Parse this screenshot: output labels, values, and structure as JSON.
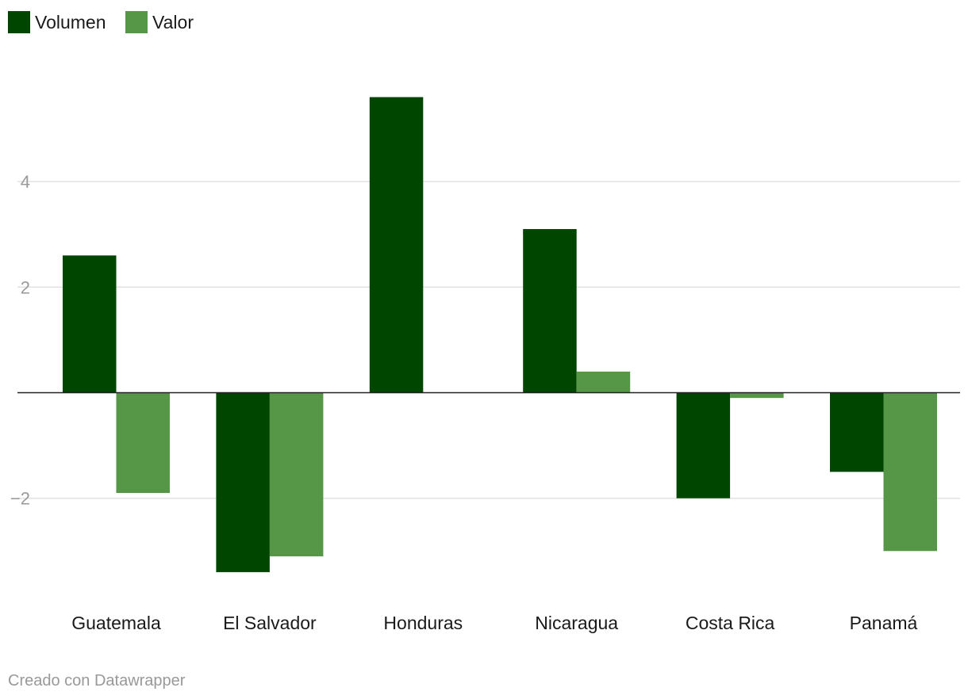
{
  "chart_data": {
    "type": "bar",
    "title": "",
    "xlabel": "",
    "ylabel": "",
    "categories": [
      "Guatemala",
      "El Salvador",
      "Honduras",
      "Nicaragua",
      "Costa Rica",
      "Panamá"
    ],
    "series": [
      {
        "name": "Volumen",
        "color": "#004600",
        "values": [
          2.6,
          -3.4,
          5.6,
          3.1,
          -2.0,
          -1.5
        ]
      },
      {
        "name": "Valor",
        "color": "#559647",
        "values": [
          -1.9,
          -3.1,
          0.0,
          0.4,
          -0.1,
          -3.0
        ]
      }
    ],
    "yticks": [
      -2,
      2,
      4
    ],
    "ytick_labels": [
      "−2",
      "2",
      "4"
    ],
    "ylim": [
      -4,
      6
    ],
    "grid": true,
    "legend_position": "top-left"
  },
  "footer": {
    "credit": "Creado con Datawrapper"
  }
}
